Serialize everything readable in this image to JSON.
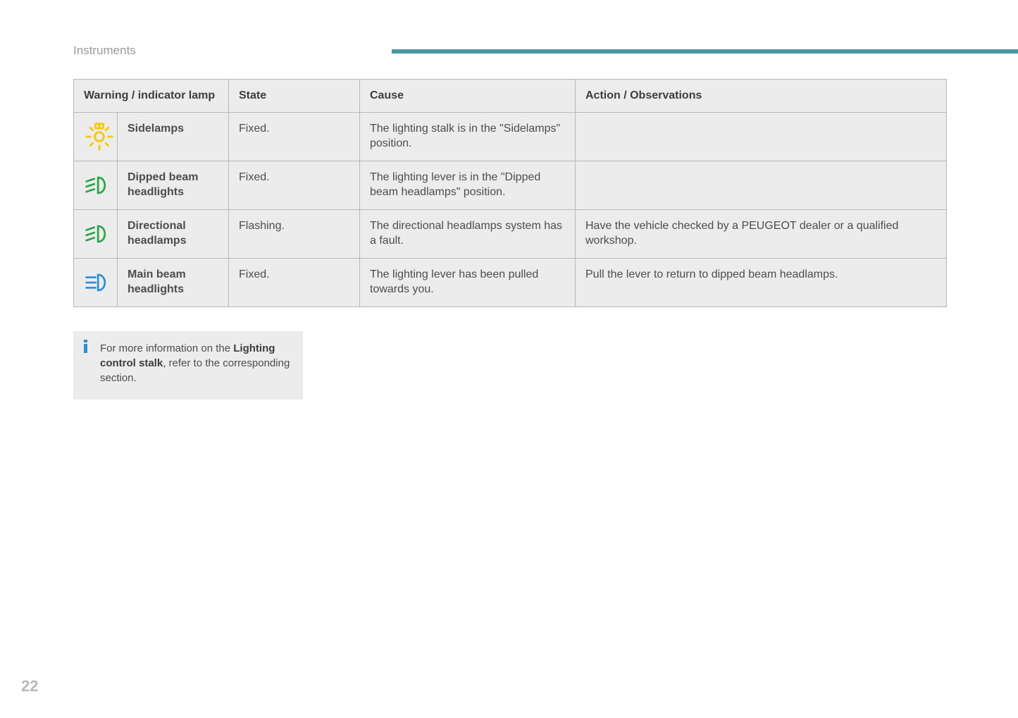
{
  "header": {
    "title": "Instruments",
    "rule_color": "#4b95a6"
  },
  "table": {
    "headers": {
      "lamp": "Warning / indicator lamp",
      "state": "State",
      "cause": "Cause",
      "action": "Action / Observations"
    },
    "rows": [
      {
        "icon": "sidelamps",
        "icon_color": "#f5c800",
        "name": "Sidelamps",
        "state": "Fixed.",
        "cause": "The lighting stalk is in the \"Sidelamps\" position.",
        "action": ""
      },
      {
        "icon": "dipped-beam",
        "icon_color": "#2aa54a",
        "name": "Dipped beam headlights",
        "state": "Fixed.",
        "cause": "The lighting lever is in the \"Dipped beam headlamps\" position.",
        "action": ""
      },
      {
        "icon": "dipped-beam",
        "icon_color": "#2aa54a",
        "name": "Directional headlamps",
        "state": "Flashing.",
        "cause": "The directional headlamps system has a fault.",
        "action": "Have the vehicle checked by a PEUGEOT dealer or a qualified workshop."
      },
      {
        "icon": "main-beam",
        "icon_color": "#2f8fd6",
        "name": "Main beam headlights",
        "state": "Fixed.",
        "cause": "The lighting lever has been pulled towards you.",
        "action": "Pull the lever to return to dipped beam headlamps."
      }
    ]
  },
  "note": {
    "text_pre": "For more information on the ",
    "bold": "Lighting control stalk",
    "text_post": ", refer to the corresponding section.",
    "info_color": "#2f8fd6"
  },
  "page_number": "22"
}
